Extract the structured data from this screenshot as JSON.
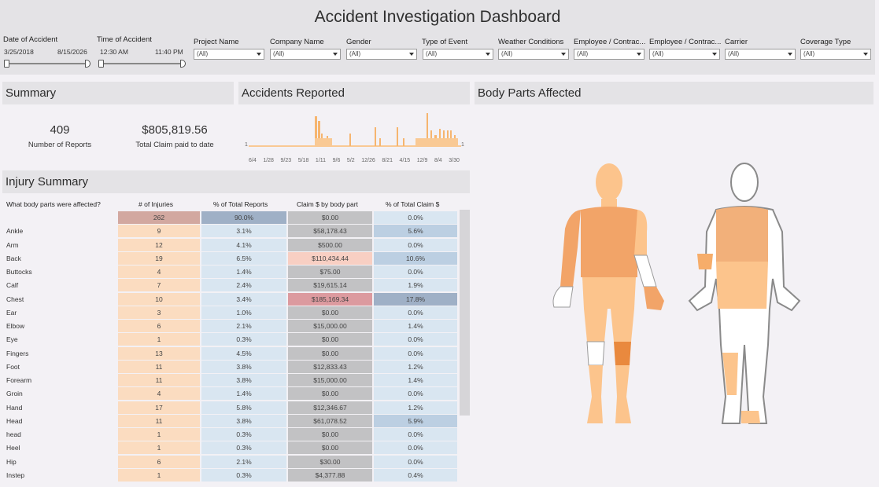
{
  "title": "Accident Investigation Dashboard",
  "filters": {
    "date": {
      "label": "Date of Accident",
      "start": "3/25/2018",
      "end": "8/15/2026"
    },
    "time": {
      "label": "Time of Accident",
      "start": "12:30 AM",
      "end": "11:40 PM"
    },
    "dropdowns": [
      {
        "label": "Project Name",
        "value": "(All)"
      },
      {
        "label": "Company Name",
        "value": "(All)"
      },
      {
        "label": "Gender",
        "value": "(All)"
      },
      {
        "label": "Type of Event",
        "value": "(All)"
      },
      {
        "label": "Weather Conditions",
        "value": "(All)"
      },
      {
        "label": "Employee / Contrac...",
        "value": "(All)"
      },
      {
        "label": "Employee / Contrac...",
        "value": "(All)"
      },
      {
        "label": "Carrier",
        "value": "(All)"
      },
      {
        "label": "Coverage Type",
        "value": "(All)"
      }
    ]
  },
  "summary": {
    "title": "Summary",
    "reports_value": "409",
    "reports_label": "Number of Reports",
    "claim_value": "$805,819.56",
    "claim_label": "Total Claim paid to date"
  },
  "accidents": {
    "title": "Accidents Reported",
    "y_start_label": "1",
    "y_end_label": "1",
    "x_labels": [
      "6/4",
      "1/28",
      "9/23",
      "5/18",
      "1/11",
      "9/6",
      "5/2",
      "12/26",
      "8/21",
      "4/15",
      "12/9",
      "8/4",
      "3/30"
    ]
  },
  "body_parts": {
    "title": "Body Parts Affected"
  },
  "injury": {
    "title": "Injury Summary",
    "headers": [
      "What body parts were affected?",
      "# of Injuries",
      "% of Total Reports",
      "Claim $ by body part",
      "% of Total Claim $"
    ],
    "rows": [
      {
        "part": "",
        "injuries": "262",
        "pct_reports": "90.0%",
        "claim": "$0.00",
        "pct_claim": "0.0%"
      },
      {
        "part": "Ankle",
        "injuries": "9",
        "pct_reports": "3.1%",
        "claim": "$58,178.43",
        "pct_claim": "5.6%"
      },
      {
        "part": "Arm",
        "injuries": "12",
        "pct_reports": "4.1%",
        "claim": "$500.00",
        "pct_claim": "0.0%"
      },
      {
        "part": "Back",
        "injuries": "19",
        "pct_reports": "6.5%",
        "claim": "$110,434.44",
        "pct_claim": "10.6%"
      },
      {
        "part": "Buttocks",
        "injuries": "4",
        "pct_reports": "1.4%",
        "claim": "$75.00",
        "pct_claim": "0.0%"
      },
      {
        "part": "Calf",
        "injuries": "7",
        "pct_reports": "2.4%",
        "claim": "$19,615.14",
        "pct_claim": "1.9%"
      },
      {
        "part": "Chest",
        "injuries": "10",
        "pct_reports": "3.4%",
        "claim": "$185,169.34",
        "pct_claim": "17.8%"
      },
      {
        "part": "Ear",
        "injuries": "3",
        "pct_reports": "1.0%",
        "claim": "$0.00",
        "pct_claim": "0.0%"
      },
      {
        "part": "Elbow",
        "injuries": "6",
        "pct_reports": "2.1%",
        "claim": "$15,000.00",
        "pct_claim": "1.4%"
      },
      {
        "part": "Eye",
        "injuries": "1",
        "pct_reports": "0.3%",
        "claim": "$0.00",
        "pct_claim": "0.0%"
      },
      {
        "part": "Fingers",
        "injuries": "13",
        "pct_reports": "4.5%",
        "claim": "$0.00",
        "pct_claim": "0.0%"
      },
      {
        "part": "Foot",
        "injuries": "11",
        "pct_reports": "3.8%",
        "claim": "$12,833.43",
        "pct_claim": "1.2%"
      },
      {
        "part": "Forearm",
        "injuries": "11",
        "pct_reports": "3.8%",
        "claim": "$15,000.00",
        "pct_claim": "1.4%"
      },
      {
        "part": "Groin",
        "injuries": "4",
        "pct_reports": "1.4%",
        "claim": "$0.00",
        "pct_claim": "0.0%"
      },
      {
        "part": "Hand",
        "injuries": "17",
        "pct_reports": "5.8%",
        "claim": "$12,346.67",
        "pct_claim": "1.2%"
      },
      {
        "part": "Head",
        "injuries": "11",
        "pct_reports": "3.8%",
        "claim": "$61,078.52",
        "pct_claim": "5.9%"
      },
      {
        "part": "head",
        "injuries": "1",
        "pct_reports": "0.3%",
        "claim": "$0.00",
        "pct_claim": "0.0%"
      },
      {
        "part": "Heel",
        "injuries": "1",
        "pct_reports": "0.3%",
        "claim": "$0.00",
        "pct_claim": "0.0%"
      },
      {
        "part": "Hip",
        "injuries": "6",
        "pct_reports": "2.1%",
        "claim": "$30.00",
        "pct_claim": "0.0%"
      },
      {
        "part": "Instep",
        "injuries": "1",
        "pct_reports": "0.3%",
        "claim": "$4,377.88",
        "pct_claim": "0.4%"
      }
    ]
  },
  "colors": {
    "panel_bg": "#e4e3e6",
    "injury_light": "#fbdcc0",
    "injury_dark": "#d2a8a0",
    "pct_light": "#d9e6f1",
    "pct_dark": "#9fb0c6",
    "claim_grey": "#c2c2c4",
    "claim_pink": "#f8cfc3",
    "claim_red": "#dc9a9f",
    "body_orange": "#fcc48c",
    "body_dark_orange": "#f2a468"
  }
}
